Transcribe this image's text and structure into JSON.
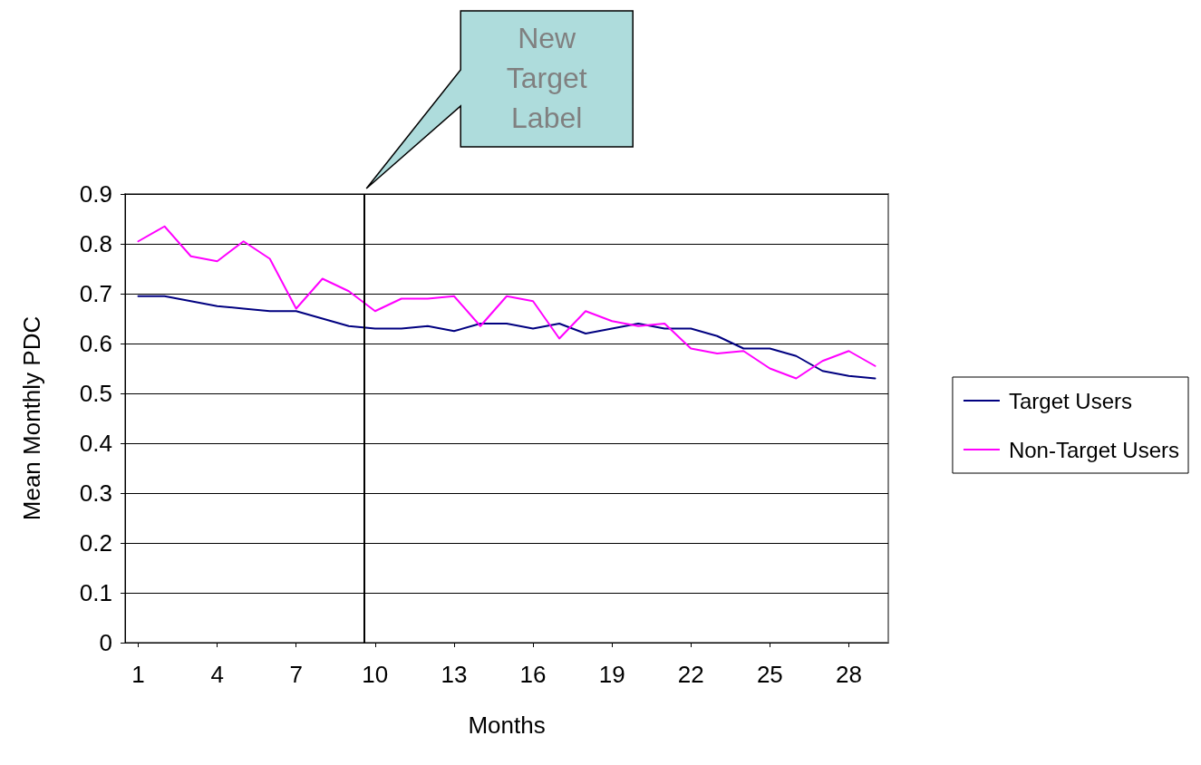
{
  "chart_data": {
    "type": "line",
    "xlabel": "Months",
    "ylabel": "Mean Monthly PDC",
    "x": [
      1,
      2,
      3,
      4,
      5,
      6,
      7,
      8,
      9,
      10,
      11,
      12,
      13,
      14,
      15,
      16,
      17,
      18,
      19,
      20,
      21,
      22,
      23,
      24,
      25,
      26,
      27,
      28,
      29
    ],
    "xlim": [
      0.5,
      29.5
    ],
    "xticks": [
      1,
      4,
      7,
      10,
      13,
      16,
      19,
      22,
      25,
      28
    ],
    "ylim": [
      0,
      0.9
    ],
    "yticks": [
      0,
      0.1,
      0.2,
      0.3,
      0.4,
      0.5,
      0.6,
      0.7,
      0.8,
      0.9
    ],
    "series": [
      {
        "name": "Target Users",
        "color": "#000080",
        "values": [
          0.695,
          0.695,
          0.685,
          0.675,
          0.67,
          0.665,
          0.665,
          0.65,
          0.635,
          0.63,
          0.63,
          0.635,
          0.625,
          0.64,
          0.64,
          0.63,
          0.64,
          0.62,
          0.63,
          0.64,
          0.63,
          0.63,
          0.615,
          0.59,
          0.59,
          0.575,
          0.545,
          0.535,
          0.53
        ]
      },
      {
        "name": "Non-Target Users",
        "color": "#ff00ff",
        "values": [
          0.805,
          0.835,
          0.775,
          0.765,
          0.805,
          0.77,
          0.67,
          0.73,
          0.705,
          0.665,
          0.69,
          0.69,
          0.695,
          0.635,
          0.695,
          0.685,
          0.61,
          0.665,
          0.645,
          0.635,
          0.64,
          0.59,
          0.58,
          0.585,
          0.55,
          0.53,
          0.565,
          0.585,
          0.555
        ]
      }
    ],
    "ref_lines": [
      {
        "axis": "x",
        "value": 9.6,
        "color": "#000000"
      }
    ],
    "annotations": [
      "New Target Label"
    ],
    "grid": "y",
    "legend": "right",
    "marker": "none",
    "line_style": "solid"
  }
}
